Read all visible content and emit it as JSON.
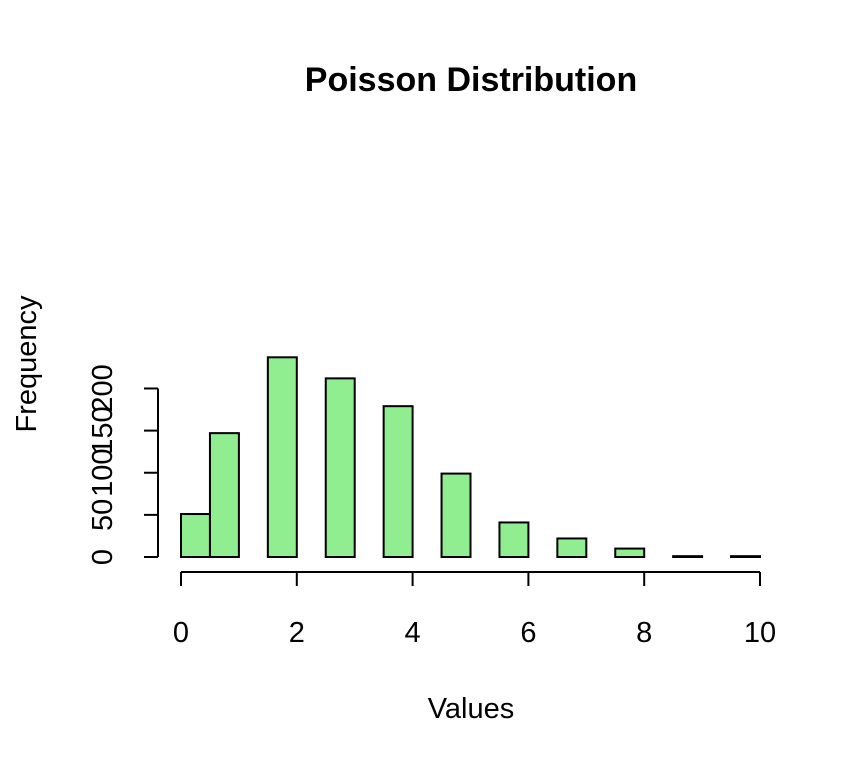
{
  "chart_data": {
    "type": "bar",
    "title": "Poisson Distribution",
    "xlabel": "Values",
    "ylabel": "Frequency",
    "bins": [
      {
        "from": 0.0,
        "to": 0.5,
        "value": 51
      },
      {
        "from": 0.5,
        "to": 1.0,
        "value": 147
      },
      {
        "from": 1.5,
        "to": 2.0,
        "value": 237
      },
      {
        "from": 2.5,
        "to": 3.0,
        "value": 212
      },
      {
        "from": 3.5,
        "to": 4.0,
        "value": 179
      },
      {
        "from": 4.5,
        "to": 5.0,
        "value": 99
      },
      {
        "from": 5.5,
        "to": 6.0,
        "value": 41
      },
      {
        "from": 6.5,
        "to": 7.0,
        "value": 22
      },
      {
        "from": 7.5,
        "to": 8.0,
        "value": 10
      },
      {
        "from": 8.5,
        "to": 9.0,
        "value": 1
      },
      {
        "from": 9.5,
        "to": 10.0,
        "value": 1
      }
    ],
    "xlim": [
      0,
      10
    ],
    "ylim": [
      0,
      237
    ],
    "x_ticks": [
      "0",
      "2",
      "4",
      "6",
      "8",
      "10"
    ],
    "y_ticks": [
      "0",
      "50",
      "100",
      "150",
      "200"
    ],
    "grid": false,
    "bar_color": "#90EE90"
  }
}
